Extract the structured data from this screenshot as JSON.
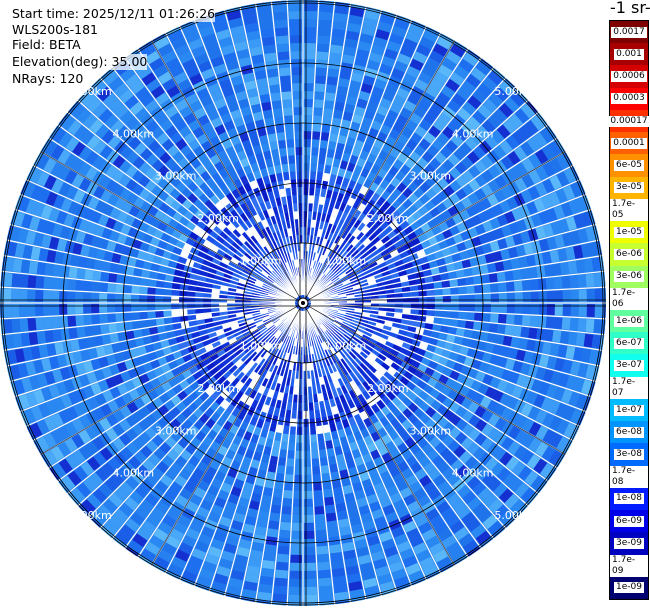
{
  "info": {
    "start_time": "Start time: 2025/12/11 01:26:26",
    "device": "WLS200s-181",
    "field": "Field: BETA",
    "elevation": "Elevation(deg): 35.00",
    "nrays": "NRays: 120"
  },
  "chart_data": {
    "type": "heatmap",
    "projection": "polar",
    "field": "BETA",
    "nrays": 120,
    "range_rings_km": [
      1.0,
      2.0,
      3.0,
      4.0,
      5.0
    ],
    "range_labels": [
      "1.00km",
      "2.00km",
      "3.00km",
      "4.00km",
      "5.00km"
    ],
    "max_range_km": 5.8,
    "colorbar": {
      "title": "-1 sr-",
      "tick_labels": [
        "0.0017",
        "0.001",
        "0.0006",
        "0.0003",
        "0.00017",
        "0.0001",
        "6e-05",
        "3e-05",
        "1.7e-05",
        "1e-05",
        "6e-06",
        "3e-06",
        "1.7e-06",
        "1e-06",
        "6e-07",
        "3e-07",
        "1.7e-07",
        "1e-07",
        "6e-08",
        "3e-08",
        "1.7e-08",
        "1e-08",
        "6e-09",
        "3e-09",
        "1.7e-09",
        "1e-09"
      ],
      "colors": [
        "#7f0000",
        "#a80000",
        "#d40000",
        "#ff0000",
        "#ff3000",
        "#ff6000",
        "#ff9000",
        "#ffb400",
        "#ffde00",
        "#f0ff00",
        "#c8ff30",
        "#a0ff60",
        "#80ff80",
        "#60ffa0",
        "#30ffc8",
        "#10ffee",
        "#00e4ff",
        "#00bcff",
        "#0094ff",
        "#006cff",
        "#0044ff",
        "#001cff",
        "#0000e8",
        "#0000c0",
        "#000098",
        "#000070"
      ]
    }
  }
}
